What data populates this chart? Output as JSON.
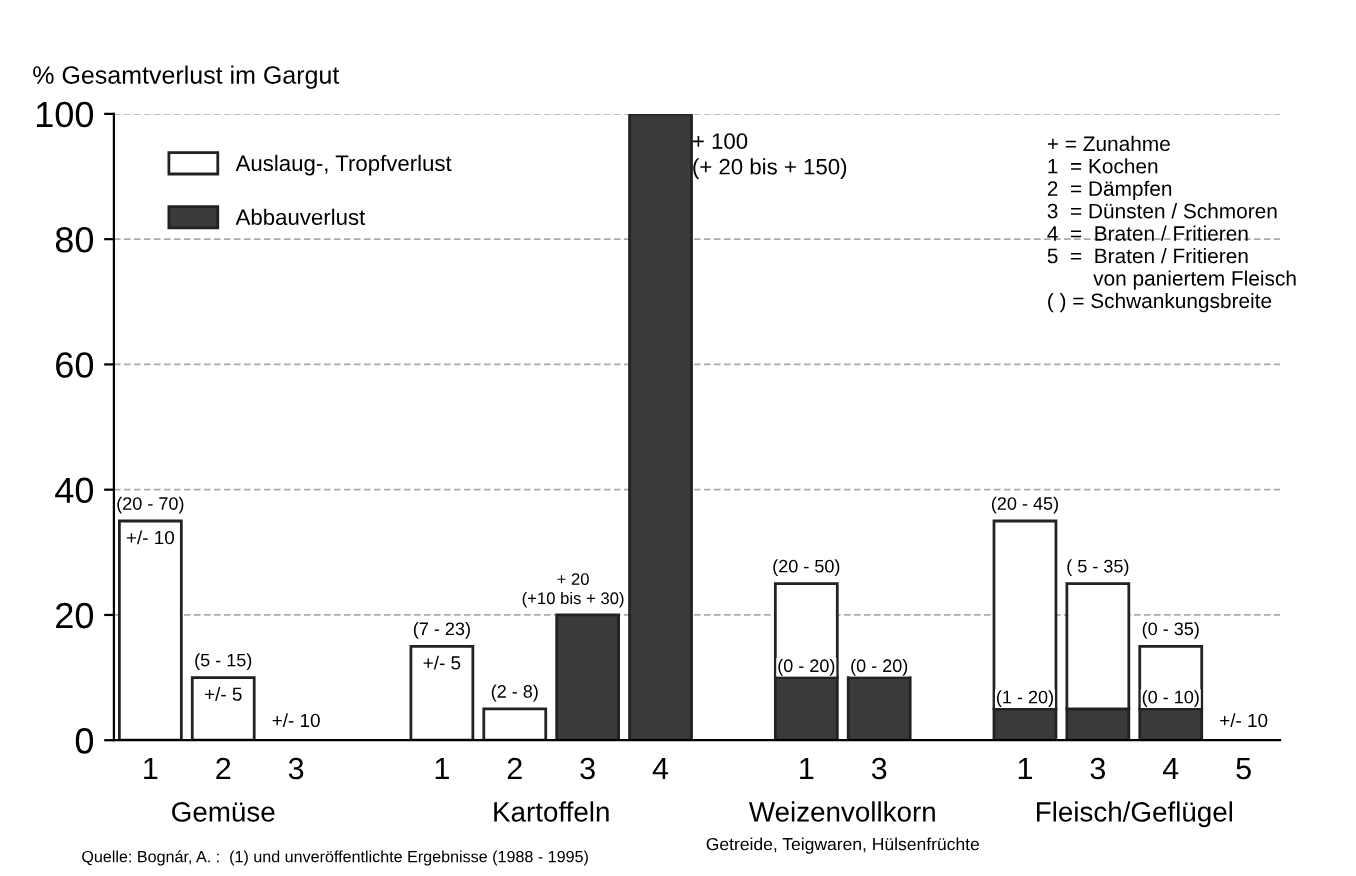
{
  "chart_data": {
    "type": "bar",
    "stacked": true,
    "ylabel": "% Gesamtverlust im Gargut",
    "categories": [
      "1",
      "2",
      "3",
      null,
      "1",
      "2",
      "3",
      "4",
      null,
      "1",
      "3",
      null,
      "1",
      "3",
      "4",
      "5"
    ],
    "series": [
      {
        "name": "Abbauverlust",
        "color": "#3a3a3a",
        "values": [
          null,
          null,
          null,
          null,
          null,
          null,
          20,
          100,
          null,
          10,
          10,
          null,
          5,
          5,
          5,
          null
        ],
        "value_labels": [
          null,
          null,
          null,
          null,
          null,
          null,
          "+ 20\n(+10 bis + 30)",
          null,
          null,
          "(0 - 20)",
          "(0 - 20)",
          null,
          "(1 - 20)",
          null,
          "(0 - 10)",
          null
        ]
      },
      {
        "name": "Auslaug-, Tropfverlust",
        "color": "#ffffff",
        "values": [
          35,
          10,
          null,
          null,
          15,
          5,
          null,
          null,
          null,
          15,
          null,
          null,
          30,
          20,
          10,
          null
        ],
        "value_labels": [
          "(20 - 70)",
          "(5 - 15)",
          null,
          null,
          "(7 - 23)",
          "(2 - 8)",
          null,
          null,
          null,
          "(20 - 50)",
          null,
          null,
          "(20 - 45)",
          "( 5 - 35)",
          "(0 - 35)",
          null
        ]
      }
    ],
    "ylim": [
      0,
      100
    ],
    "yticks": [
      0,
      20,
      40,
      60,
      80,
      100
    ],
    "grid": "y",
    "legend": "top left",
    "annotations": [
      "+ = Zunahme\n1  = Kochen\n2  = Dämpfen\n3  = Dünsten / Schmoren\n4  =  Braten / Fritieren\n5  =  Braten / Fritieren\n        von paniertem Fleisch\n( ) = Schwankungsbreite",
      "Gemüse",
      "Kartoffeln",
      "Weizenvollkorn\nGetreide, Teigwaren, Hülsenfrüchte",
      "Fleisch/Geflügel",
      {
        "text": "+/- 10",
        "x": "1",
        "y": 35
      },
      {
        "text": "+/- 5",
        "x": "2",
        "y": 10
      },
      {
        "text": "+/- 5",
        "y": 15
      },
      {
        "text": "+ 100\n(+ 20 bis + 150)",
        "x": "4",
        "y": 100
      },
      "+/- 10",
      "+/- 10",
      "Quelle: Bognár, A. :  (1) und unveröffentlichte Ergebnisse (1988 - 1995)"
    ]
  }
}
